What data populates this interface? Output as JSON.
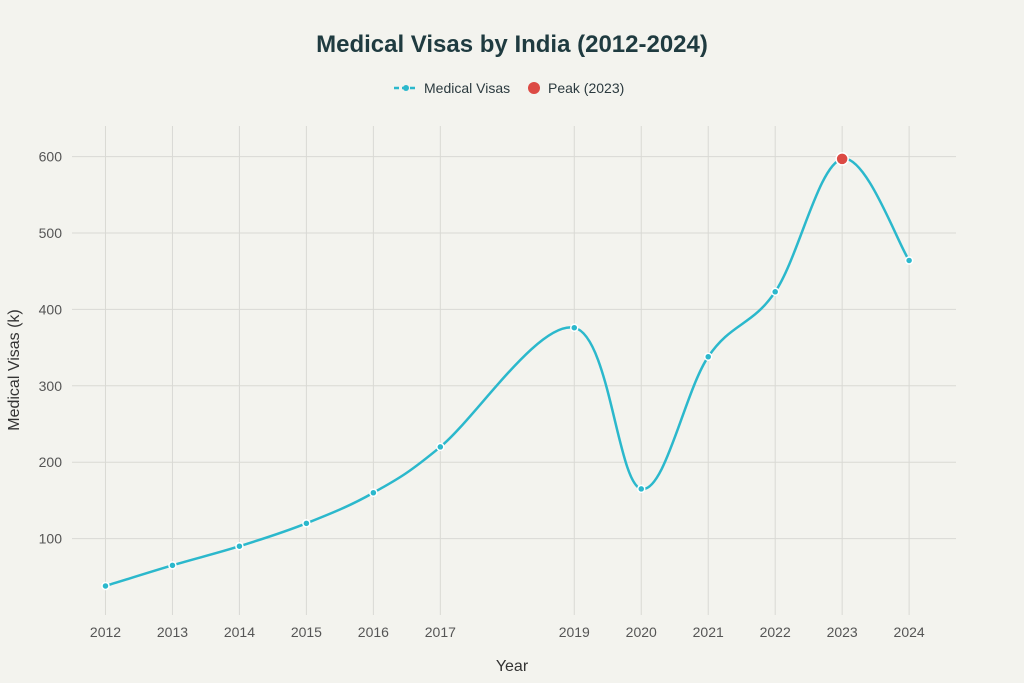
{
  "chart_data": {
    "type": "line",
    "title": "Medical Visas by India (2012-2024)",
    "xlabel": "Year",
    "ylabel": "Medical Visas (k)",
    "xlim": [
      2011.5,
      2024.7
    ],
    "ylim": [
      0,
      640
    ],
    "x_ticks": [
      2012,
      2013,
      2014,
      2015,
      2016,
      2017,
      2019,
      2020,
      2021,
      2022,
      2023,
      2024
    ],
    "y_ticks": [
      100,
      200,
      300,
      400,
      500,
      600
    ],
    "grid": true,
    "legend_position": "top-center",
    "series": [
      {
        "name": "Medical Visas",
        "color": "#2bb8cc",
        "x": [
          2012,
          2013,
          2014,
          2015,
          2016,
          2017,
          2019,
          2020,
          2021,
          2022,
          2023,
          2024
        ],
        "values": [
          38,
          65,
          90,
          120,
          160,
          220,
          376,
          165,
          338,
          423,
          597,
          464
        ]
      }
    ],
    "peak": {
      "name": "Peak (2023)",
      "x": 2023,
      "value": 597,
      "color": "#dc4a44"
    }
  }
}
